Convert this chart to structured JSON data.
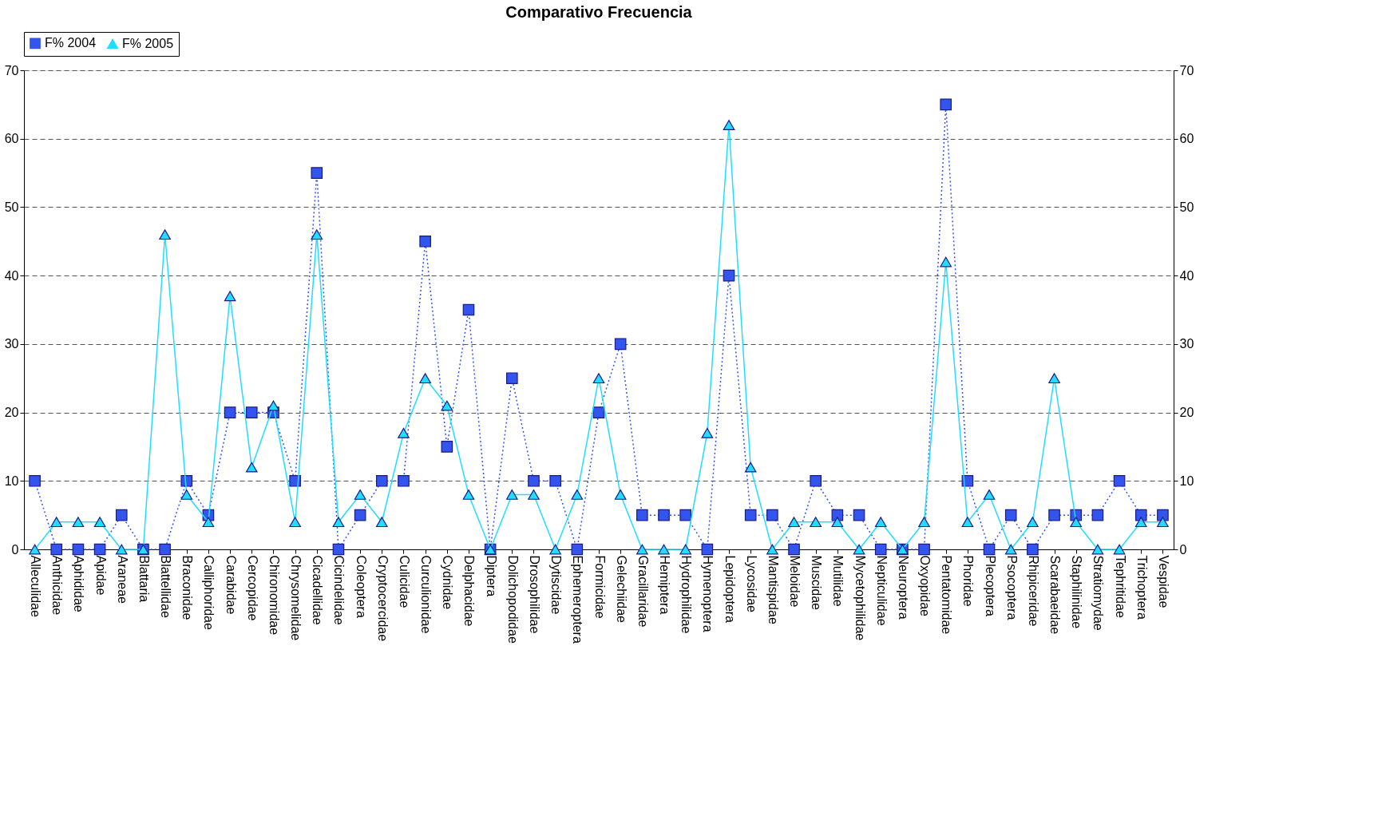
{
  "chart_data": {
    "type": "line",
    "title": "Comparativo Frecuencia",
    "categories": [
      "Alleculidae",
      "Anthicidae",
      "Aphididae",
      "Apidae",
      "Araneae",
      "Blattaria",
      "Blattellidae",
      "Braconidae",
      "Calliphoridae",
      "Carabidae",
      "Cercopidae",
      "Chironomidae",
      "Chrysomelidae",
      "Cicadellidae",
      "Cicindelidae",
      "Coleoptera",
      "Cryptocercidae",
      "Culicidae",
      "Curculionidae",
      "Cydnidae",
      "Delphacidae",
      "Diptera",
      "Dolichopodidae",
      "Drosophilidae",
      "Dytiscidae",
      "Ephemeroptera",
      "Formicidae",
      "Gelechiidae",
      "Gracillaridae",
      "Hemiptera",
      "Hydrophilidae",
      "Hymenoptera",
      "Lepidoptera",
      "Lycosidae",
      "Mantispidae",
      "Meloidae",
      "Muscidae",
      "Mutilidae",
      "Mycetophilidae",
      "Nepticulidae",
      "Neuroptera",
      "Oxyopidae",
      "Pentatomidae",
      "Phoridae",
      "Plecoptera",
      "Psocoptera",
      "Rhipiceridae",
      "Scarabaeidae",
      "Staphilinidae",
      "Stratiomydae",
      "Tephritidae",
      "Trichoptera",
      "Vespidae"
    ],
    "series": [
      {
        "name": "F% 2004",
        "color": "#3355ee",
        "marker": "square",
        "line_style": "dotted",
        "values": [
          10,
          0,
          0,
          0,
          5,
          0,
          0,
          10,
          5,
          20,
          20,
          20,
          10,
          55,
          0,
          5,
          10,
          10,
          45,
          15,
          35,
          0,
          25,
          10,
          10,
          0,
          20,
          30,
          5,
          5,
          5,
          0,
          40,
          5,
          5,
          0,
          10,
          5,
          5,
          0,
          0,
          0,
          65,
          10,
          0,
          5,
          0,
          5,
          5,
          5,
          10,
          5,
          5
        ]
      },
      {
        "name": "F% 2005",
        "color": "#22ddff",
        "marker": "triangle",
        "line_style": "solid",
        "values": [
          0,
          4,
          4,
          4,
          0,
          0,
          46,
          8,
          4,
          37,
          12,
          21,
          4,
          46,
          4,
          8,
          4,
          17,
          25,
          21,
          8,
          0,
          8,
          8,
          0,
          8,
          25,
          8,
          0,
          0,
          0,
          17,
          62,
          12,
          0,
          4,
          4,
          4,
          0,
          4,
          0,
          4,
          42,
          4,
          8,
          0,
          4,
          25,
          4,
          0,
          0,
          4,
          4
        ]
      }
    ],
    "ylim": [
      0,
      70
    ],
    "yticks": [
      0,
      10,
      20,
      30,
      40,
      50,
      60,
      70
    ],
    "y2lim": [
      0,
      70
    ],
    "y2ticks": [
      0,
      10,
      20,
      30,
      40,
      50,
      60,
      70
    ],
    "grid": "y",
    "legend": "top"
  }
}
